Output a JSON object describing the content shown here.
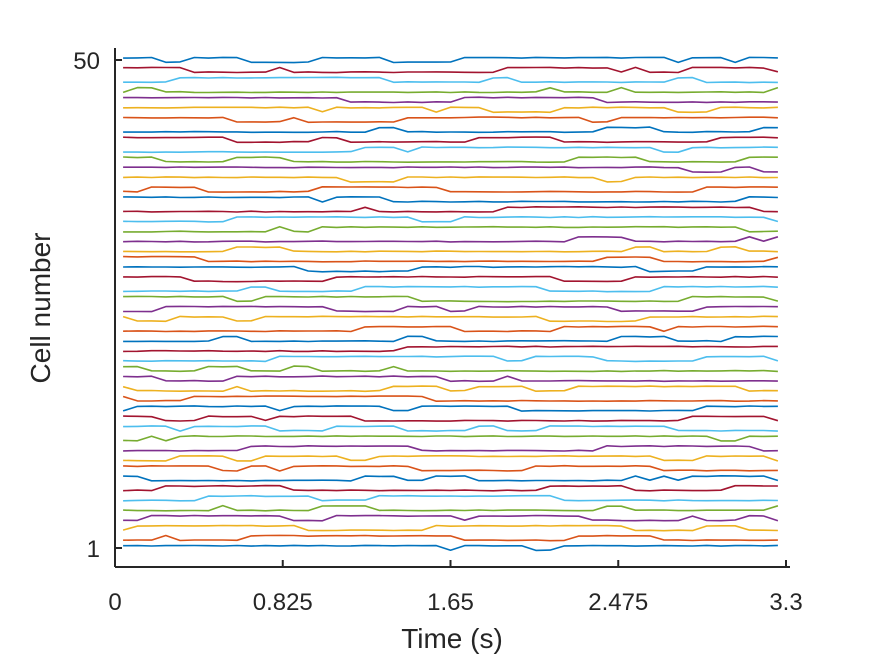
{
  "chart_data": {
    "type": "line",
    "xlabel": "Time (s)",
    "ylabel": "Cell number",
    "xlim": [
      0,
      3.3
    ],
    "ylim": [
      0,
      51
    ],
    "x_ticks": [
      0,
      0.825,
      1.65,
      2.475,
      3.3
    ],
    "x_tick_labels": [
      "0",
      "0.825",
      "1.65",
      "2.475",
      "3.3"
    ],
    "y_ticks": [
      1,
      50
    ],
    "y_tick_labels": [
      "1",
      "50"
    ],
    "grid": false,
    "colors": [
      "#0072BD",
      "#D95319",
      "#EDB120",
      "#7E2F8E",
      "#77AC30",
      "#4DBEEE",
      "#A2142F"
    ],
    "series_count": 50,
    "trace_amplitude": 0.45,
    "x_range_data": [
      0.04,
      3.29
    ],
    "step": 0.07
  }
}
